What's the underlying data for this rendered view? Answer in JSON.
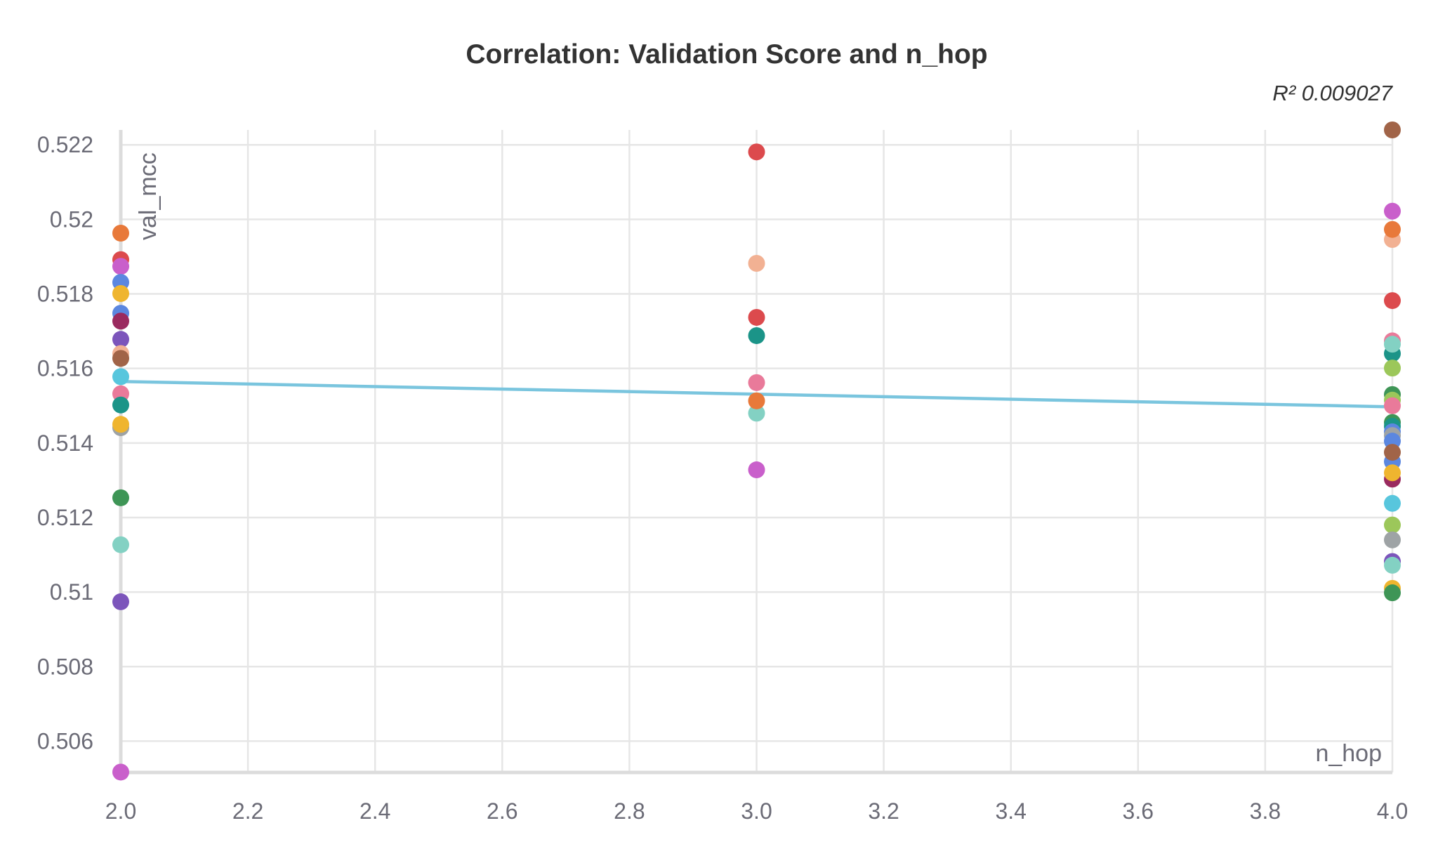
{
  "chart_data": {
    "type": "scatter",
    "title": "Correlation: Validation Score and n_hop",
    "xlabel": "n_hop",
    "ylabel": "val_mcc",
    "r2_label": "R² 0.009027",
    "xlim": [
      2.0,
      4.0
    ],
    "ylim": [
      0.50516,
      0.5224
    ],
    "x_ticks": [
      2.0,
      2.2,
      2.4,
      2.6,
      2.8,
      3.0,
      3.2,
      3.4,
      3.6,
      3.8,
      4.0
    ],
    "x_tick_labels": [
      "2.0",
      "2.2",
      "2.4",
      "2.6",
      "2.8",
      "3.0",
      "3.2",
      "3.4",
      "3.6",
      "3.8",
      "4.0"
    ],
    "y_ticks": [
      0.506,
      0.508,
      0.51,
      0.512,
      0.514,
      0.516,
      0.518,
      0.52,
      0.522
    ],
    "y_tick_labels": [
      "0.506",
      "0.508",
      "0.51",
      "0.512",
      "0.514",
      "0.516",
      "0.518",
      "0.52",
      "0.522"
    ],
    "grid": true,
    "trend_line": {
      "x": [
        2.0,
        4.0
      ],
      "y": [
        0.51565,
        0.51497
      ],
      "color": "#7ac5de"
    },
    "points": [
      {
        "x": 2,
        "y": 0.51963,
        "color": "#e8793a"
      },
      {
        "x": 2,
        "y": 0.51892,
        "color": "#dc4a4d"
      },
      {
        "x": 2,
        "y": 0.51874,
        "color": "#c95fcb"
      },
      {
        "x": 2,
        "y": 0.51831,
        "color": "#5b87e0"
      },
      {
        "x": 2,
        "y": 0.51801,
        "color": "#efb52f"
      },
      {
        "x": 2,
        "y": 0.51748,
        "color": "#5b87e0"
      },
      {
        "x": 2,
        "y": 0.51727,
        "color": "#9a2a5f"
      },
      {
        "x": 2,
        "y": 0.51678,
        "color": "#7c55bb"
      },
      {
        "x": 2,
        "y": 0.5164,
        "color": "#f2b193"
      },
      {
        "x": 2,
        "y": 0.51627,
        "color": "#a16448"
      },
      {
        "x": 2,
        "y": 0.51578,
        "color": "#58c6dd"
      },
      {
        "x": 2,
        "y": 0.51532,
        "color": "#e97a9a"
      },
      {
        "x": 2,
        "y": 0.51502,
        "color": "#1b9488"
      },
      {
        "x": 2,
        "y": 0.51441,
        "color": "#9ea3a5"
      },
      {
        "x": 2,
        "y": 0.5145,
        "color": "#efb52f"
      },
      {
        "x": 2,
        "y": 0.51253,
        "color": "#3e9556"
      },
      {
        "x": 2,
        "y": 0.51127,
        "color": "#83d1c3"
      },
      {
        "x": 2,
        "y": 0.50974,
        "color": "#7c55bb"
      },
      {
        "x": 2,
        "y": 0.50517,
        "color": "#c95fcb"
      },
      {
        "x": 3,
        "y": 0.52181,
        "color": "#dc4a4d"
      },
      {
        "x": 3,
        "y": 0.51882,
        "color": "#f2b193"
      },
      {
        "x": 3,
        "y": 0.51737,
        "color": "#dc4a4d"
      },
      {
        "x": 3,
        "y": 0.51688,
        "color": "#1b9488"
      },
      {
        "x": 3,
        "y": 0.51562,
        "color": "#e97a9a"
      },
      {
        "x": 3,
        "y": 0.5148,
        "color": "#83d1c3"
      },
      {
        "x": 3,
        "y": 0.51513,
        "color": "#e8793a"
      },
      {
        "x": 3,
        "y": 0.51328,
        "color": "#c95fcb"
      },
      {
        "x": 4,
        "y": 0.5224,
        "color": "#a16448"
      },
      {
        "x": 4,
        "y": 0.52022,
        "color": "#c95fcb"
      },
      {
        "x": 4,
        "y": 0.51946,
        "color": "#f2b193"
      },
      {
        "x": 4,
        "y": 0.51973,
        "color": "#e8793a"
      },
      {
        "x": 4,
        "y": 0.51782,
        "color": "#dc4a4d"
      },
      {
        "x": 4,
        "y": 0.51674,
        "color": "#e97a9a"
      },
      {
        "x": 4,
        "y": 0.5164,
        "color": "#1b9488"
      },
      {
        "x": 4,
        "y": 0.51665,
        "color": "#83d1c3"
      },
      {
        "x": 4,
        "y": 0.51601,
        "color": "#9cc75a"
      },
      {
        "x": 4,
        "y": 0.5153,
        "color": "#3e9556"
      },
      {
        "x": 4,
        "y": 0.51515,
        "color": "#9cc75a"
      },
      {
        "x": 4,
        "y": 0.515,
        "color": "#e97a9a"
      },
      {
        "x": 4,
        "y": 0.51455,
        "color": "#3e9556"
      },
      {
        "x": 4,
        "y": 0.51445,
        "color": "#1b9488"
      },
      {
        "x": 4,
        "y": 0.5143,
        "color": "#5b87e0"
      },
      {
        "x": 4,
        "y": 0.5142,
        "color": "#9ea3a5"
      },
      {
        "x": 4,
        "y": 0.51405,
        "color": "#5b87e0"
      },
      {
        "x": 4,
        "y": 0.5135,
        "color": "#5b87e0"
      },
      {
        "x": 4,
        "y": 0.51375,
        "color": "#a16448"
      },
      {
        "x": 4,
        "y": 0.51303,
        "color": "#9a2a5f"
      },
      {
        "x": 4,
        "y": 0.5132,
        "color": "#efb52f"
      },
      {
        "x": 4,
        "y": 0.51238,
        "color": "#58c6dd"
      },
      {
        "x": 4,
        "y": 0.5118,
        "color": "#9cc75a"
      },
      {
        "x": 4,
        "y": 0.5114,
        "color": "#9ea3a5"
      },
      {
        "x": 4,
        "y": 0.51082,
        "color": "#7c55bb"
      },
      {
        "x": 4,
        "y": 0.51072,
        "color": "#83d1c3"
      },
      {
        "x": 4,
        "y": 0.5101,
        "color": "#efb52f"
      },
      {
        "x": 4,
        "y": 0.50998,
        "color": "#3e9556"
      }
    ]
  }
}
